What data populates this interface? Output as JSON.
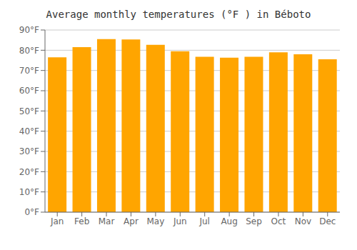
{
  "chart_data": {
    "type": "bar",
    "title": "Average monthly temperatures (°F ) in Béboto",
    "categories": [
      "Jan",
      "Feb",
      "Mar",
      "Apr",
      "May",
      "Jun",
      "Jul",
      "Aug",
      "Sep",
      "Oct",
      "Nov",
      "Dec"
    ],
    "values": [
      76.5,
      81.5,
      85.5,
      85.3,
      82.7,
      79.5,
      76.8,
      76.3,
      76.8,
      79.0,
      78.0,
      75.5
    ],
    "color": "#FFA500",
    "ylim": [
      0,
      90
    ],
    "yticks": [
      {
        "value": 0,
        "label": "0°F"
      },
      {
        "value": 10,
        "label": "10°F"
      },
      {
        "value": 20,
        "label": "20°F"
      },
      {
        "value": 30,
        "label": "30°F"
      },
      {
        "value": 40,
        "label": "40°F"
      },
      {
        "value": 50,
        "label": "50°F"
      },
      {
        "value": 60,
        "label": "60°F"
      },
      {
        "value": 70,
        "label": "70°F"
      },
      {
        "value": 80,
        "label": "80°F"
      },
      {
        "value": 90,
        "label": "90°F"
      }
    ],
    "grid": true
  }
}
